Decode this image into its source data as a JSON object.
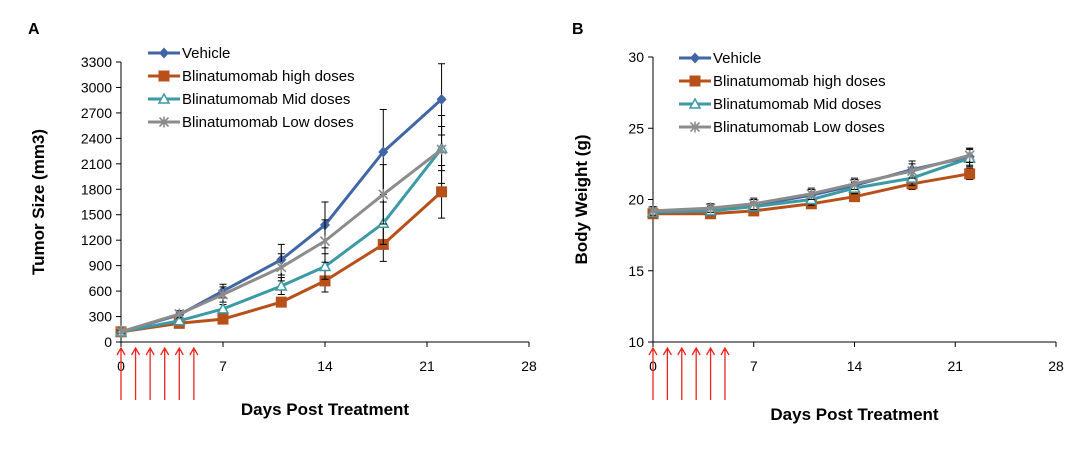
{
  "colors": {
    "vehicle": "#4166A5",
    "high": "#B8501A",
    "mid": "#3C9AA4",
    "low": "#8C8C8C",
    "arrow": "#E8261C"
  },
  "chart_data": [
    {
      "type": "line",
      "panel_label": "A",
      "xlabel": "Days Post Treatment",
      "ylabel": "Tumor Size (mm3)",
      "xlim": [
        0,
        28
      ],
      "ylim": [
        0,
        3300
      ],
      "xticks": [
        0,
        7,
        14,
        21,
        28
      ],
      "yticks": [
        0,
        300,
        600,
        900,
        1200,
        1500,
        1800,
        2100,
        2400,
        2700,
        3000,
        3300
      ],
      "x": [
        0,
        4,
        7,
        11,
        14,
        18,
        22
      ],
      "legend_position": "top-left",
      "dosing_days": [
        0,
        1,
        2,
        3,
        4,
        5
      ],
      "series": [
        {
          "name": "Vehicle",
          "key": "vehicle",
          "marker": "diamond",
          "values": [
            120,
            320,
            600,
            970,
            1380,
            2240,
            2860
          ],
          "errors": [
            20,
            30,
            80,
            180,
            270,
            500,
            420
          ]
        },
        {
          "name": "Blinatumomab high doses",
          "key": "high",
          "marker": "square",
          "values": [
            120,
            220,
            270,
            470,
            720,
            1150,
            1770
          ],
          "errors": [
            15,
            30,
            40,
            50,
            130,
            200,
            310
          ]
        },
        {
          "name": "Blinatumomab Mid doses",
          "key": "mid",
          "marker": "triangle",
          "values": [
            120,
            250,
            390,
            660,
            890,
            1400,
            2280
          ],
          "errors": [
            15,
            30,
            50,
            100,
            150,
            250,
            260
          ]
        },
        {
          "name": "Blinatumomab Low doses",
          "key": "low",
          "marker": "asterisk",
          "values": [
            120,
            330,
            560,
            880,
            1190,
            1740,
            2270
          ],
          "errors": [
            20,
            40,
            90,
            160,
            250,
            350,
            400
          ]
        }
      ]
    },
    {
      "type": "line",
      "panel_label": "B",
      "xlabel": "Days Post Treatment",
      "ylabel": "Body Weight (g)",
      "xlim": [
        0,
        28
      ],
      "ylim": [
        10,
        30
      ],
      "xticks": [
        0,
        7,
        14,
        21,
        28
      ],
      "yticks": [
        10,
        15,
        20,
        25,
        30
      ],
      "x": [
        0,
        4,
        7,
        11,
        14,
        18,
        22
      ],
      "legend_position": "top-left",
      "dosing_days": [
        0,
        1,
        2,
        3,
        4,
        5
      ],
      "series": [
        {
          "name": "Vehicle",
          "key": "vehicle",
          "marker": "diamond",
          "values": [
            19.1,
            19.3,
            19.6,
            20.3,
            21.0,
            22.1,
            23.0
          ],
          "errors": [
            0.3,
            0.3,
            0.4,
            0.4,
            0.4,
            0.6,
            0.6
          ]
        },
        {
          "name": "Blinatumomab high doses",
          "key": "high",
          "marker": "square",
          "values": [
            19.0,
            19.0,
            19.2,
            19.7,
            20.2,
            21.1,
            21.8
          ],
          "errors": [
            0.3,
            0.3,
            0.3,
            0.3,
            0.3,
            0.4,
            0.4
          ]
        },
        {
          "name": "Blinatumomab Mid doses",
          "key": "mid",
          "marker": "triangle",
          "values": [
            19.1,
            19.2,
            19.5,
            20.0,
            20.8,
            21.5,
            22.9
          ],
          "errors": [
            0.3,
            0.3,
            0.3,
            0.4,
            0.4,
            0.5,
            0.6
          ]
        },
        {
          "name": "Blinatumomab Low doses",
          "key": "low",
          "marker": "asterisk",
          "values": [
            19.2,
            19.4,
            19.7,
            20.4,
            21.1,
            22.0,
            23.1
          ],
          "errors": [
            0.3,
            0.3,
            0.4,
            0.4,
            0.4,
            0.5,
            0.5
          ]
        }
      ]
    }
  ]
}
